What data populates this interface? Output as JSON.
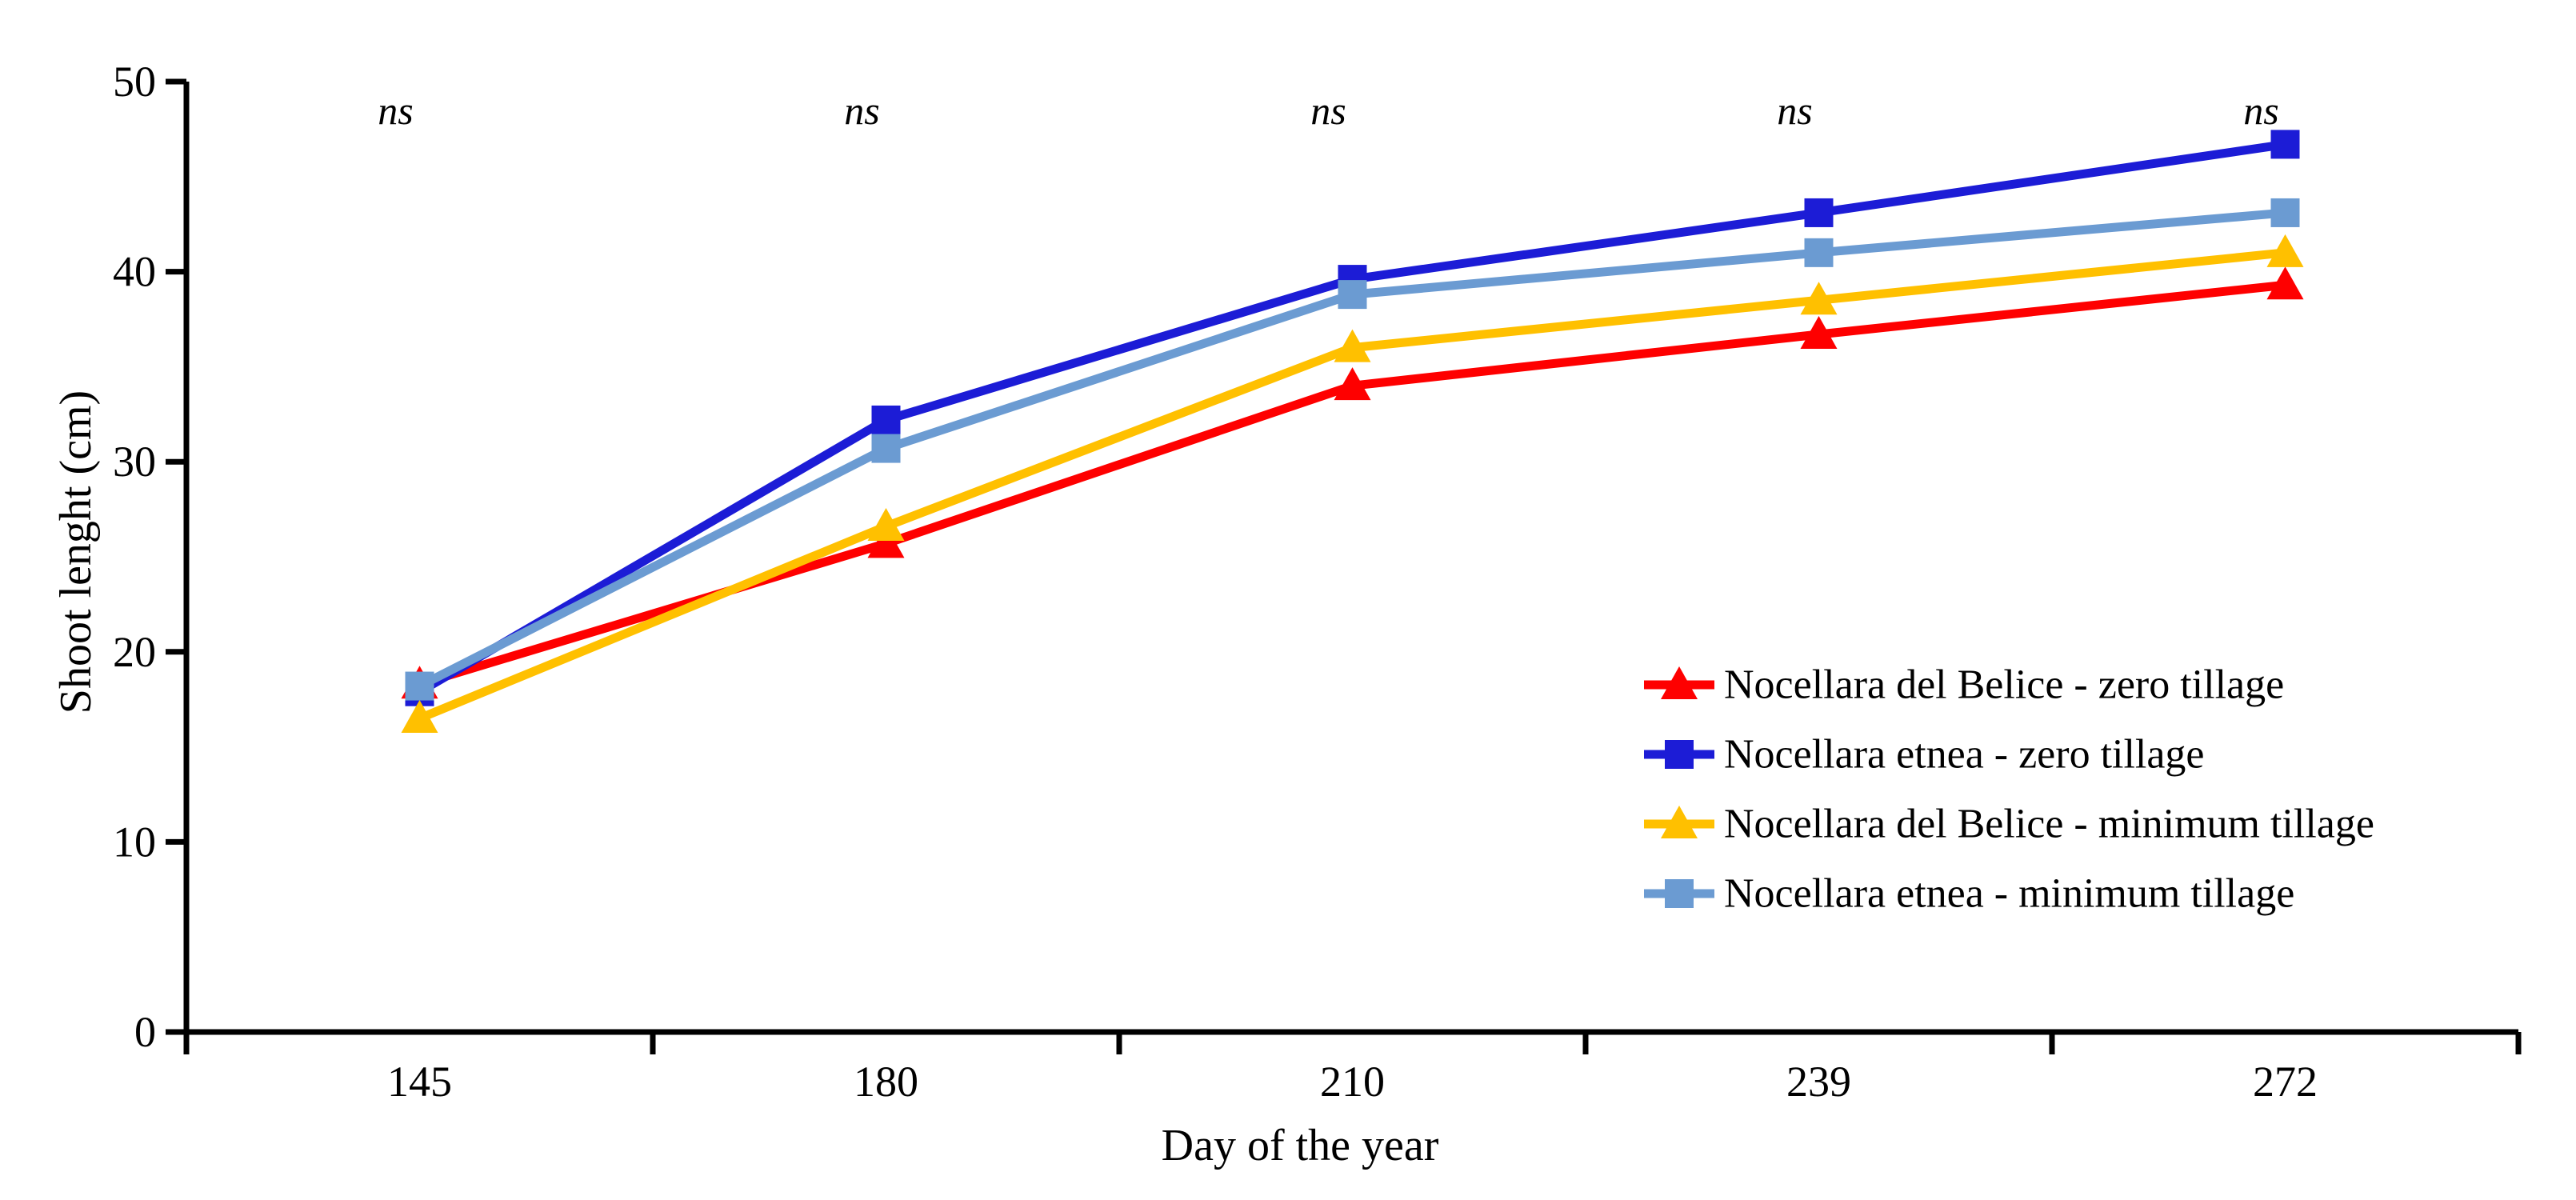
{
  "figure": {
    "background_color": "#FFFFFF",
    "axis_color": "#000000",
    "text_color": "#000000"
  },
  "chart_data": {
    "type": "line",
    "x_axis_type": "categorical",
    "categories": [
      "145",
      "180",
      "210",
      "239",
      "272"
    ],
    "xlabel": "Day of the year",
    "ylabel": "Shoot lenght (cm)",
    "ylim": [
      0,
      50
    ],
    "yticks": [
      0,
      10,
      20,
      30,
      40,
      50
    ],
    "grid": false,
    "legend_position": "inside-right",
    "series": [
      {
        "name": "Nocellara del Belice - zero tillage",
        "color": "#FE0000",
        "marker": "triangle",
        "values": [
          18.3,
          25.7,
          34.0,
          36.7,
          39.3
        ]
      },
      {
        "name": "Nocellara etnea - zero tillage",
        "color": "#1C1CD6",
        "marker": "square",
        "values": [
          17.9,
          32.2,
          39.6,
          43.1,
          46.7
        ]
      },
      {
        "name": "Nocellara del Belice - minimum tillage",
        "color": "#FFC000",
        "marker": "triangle",
        "values": [
          16.5,
          26.6,
          36.0,
          38.5,
          41.0
        ]
      },
      {
        "name": "Nocellara etnea - minimum tillage",
        "color": "#6B9BD2",
        "marker": "square",
        "values": [
          18.2,
          30.7,
          38.8,
          41.0,
          43.1
        ]
      }
    ],
    "annotations": [
      {
        "category": "145",
        "text": "ns"
      },
      {
        "category": "180",
        "text": "ns"
      },
      {
        "category": "210",
        "text": "ns"
      },
      {
        "category": "239",
        "text": "ns"
      },
      {
        "category": "272",
        "text": "ns"
      }
    ]
  }
}
